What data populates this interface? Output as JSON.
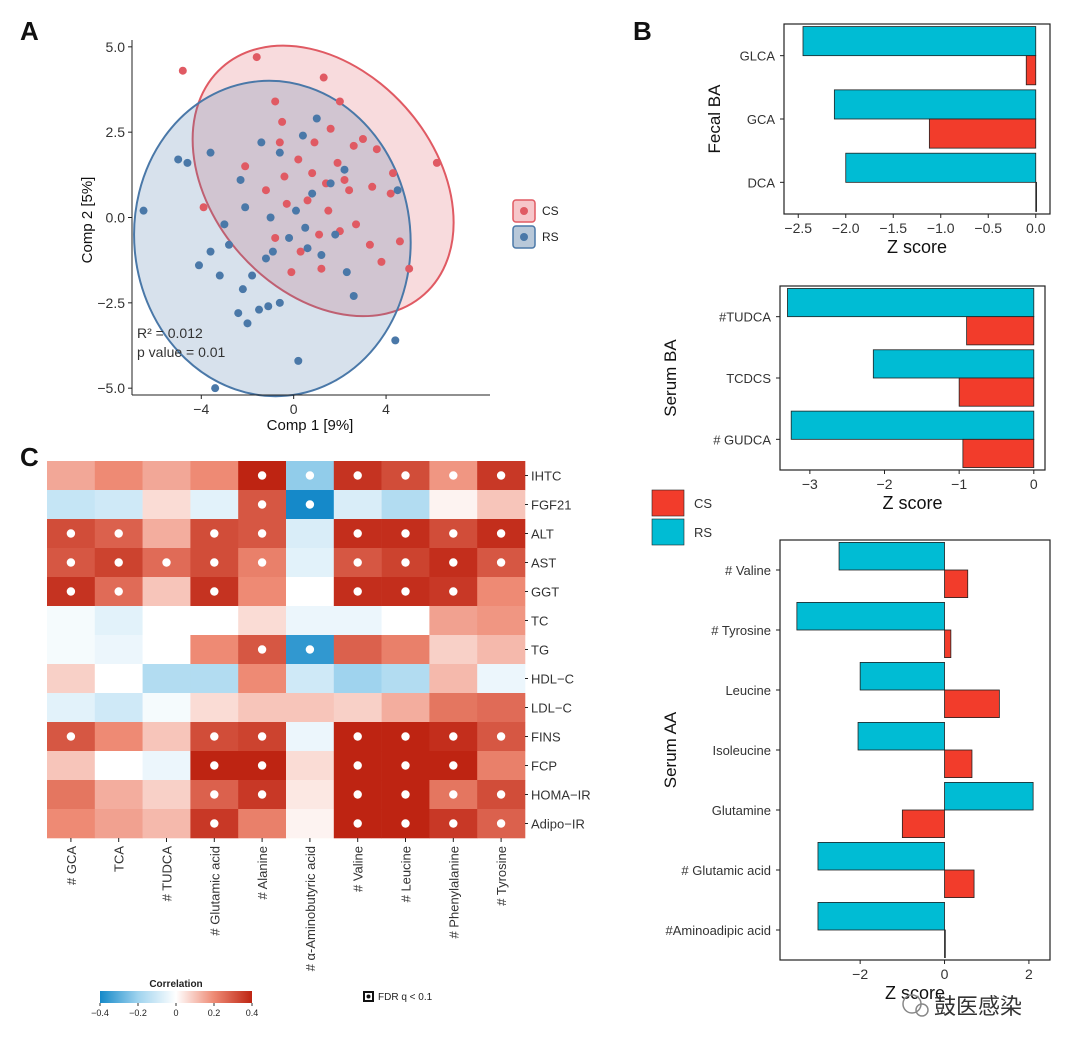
{
  "panels": {
    "a": "A",
    "b": "B",
    "c": "C"
  },
  "watermark": "鼓医感染",
  "colors": {
    "cs": "#e05a63",
    "rs": "#4a78a8",
    "bar_cs": "#f23c2b",
    "bar_rs": "#00bcd4"
  },
  "chart_data": [
    {
      "id": "A",
      "type": "scatter",
      "xlabel": "Comp 1 [9%]",
      "ylabel": "Comp 2 [5%]",
      "xlim": [
        -7,
        8.5
      ],
      "ylim": [
        -5.2,
        5.2
      ],
      "xticks": [
        "−4",
        "0",
        "4"
      ],
      "xtick_values": [
        -4,
        0,
        4
      ],
      "yticks": [
        "5.0",
        "2.5",
        "0.0",
        "−2.5",
        "−5.0"
      ],
      "ytick_values": [
        5,
        2.5,
        0,
        -2.5,
        -5
      ],
      "legend": [
        "CS",
        "RS"
      ],
      "annotation": [
        "R² =  0.012",
        "p value =  0.01"
      ],
      "series": [
        {
          "name": "CS",
          "points": [
            [
              -4.8,
              4.3
            ],
            [
              -1.6,
              4.7
            ],
            [
              -0.8,
              3.4
            ],
            [
              -0.6,
              2.2
            ],
            [
              1.3,
              4.1
            ],
            [
              2.0,
              3.4
            ],
            [
              3.0,
              2.3
            ],
            [
              3.6,
              2.0
            ],
            [
              4.3,
              1.3
            ],
            [
              6.2,
              1.6
            ],
            [
              0.2,
              1.7
            ],
            [
              1.4,
              1.0
            ],
            [
              -0.4,
              1.2
            ],
            [
              -3.9,
              0.3
            ],
            [
              0.6,
              0.5
            ],
            [
              2.4,
              0.8
            ],
            [
              3.4,
              0.9
            ],
            [
              4.2,
              0.7
            ],
            [
              -1.2,
              0.8
            ],
            [
              -0.3,
              0.4
            ],
            [
              0.8,
              1.3
            ],
            [
              1.9,
              1.6
            ],
            [
              2.6,
              2.1
            ],
            [
              4.6,
              -0.7
            ],
            [
              5.0,
              -1.5
            ],
            [
              -0.8,
              -0.6
            ],
            [
              1.1,
              -0.5
            ],
            [
              2.0,
              -0.4
            ],
            [
              3.3,
              -0.8
            ],
            [
              3.8,
              -1.3
            ],
            [
              -0.1,
              -1.6
            ],
            [
              1.2,
              -1.5
            ],
            [
              1.5,
              0.2
            ],
            [
              2.7,
              -0.2
            ],
            [
              0.3,
              -1.0
            ],
            [
              -0.5,
              2.8
            ],
            [
              1.6,
              2.6
            ],
            [
              -2.1,
              1.5
            ],
            [
              0.9,
              2.2
            ],
            [
              2.2,
              1.1
            ]
          ]
        },
        {
          "name": "RS",
          "points": [
            [
              -6.5,
              0.2
            ],
            [
              -5.0,
              1.7
            ],
            [
              -4.6,
              1.6
            ],
            [
              -3.6,
              1.9
            ],
            [
              -3.4,
              -5.0
            ],
            [
              0.2,
              -4.2
            ],
            [
              4.4,
              -3.6
            ],
            [
              -4.1,
              -1.4
            ],
            [
              -3.2,
              -1.7
            ],
            [
              -2.4,
              -2.8
            ],
            [
              -2.0,
              -3.1
            ],
            [
              -1.5,
              -2.7
            ],
            [
              -1.1,
              -2.6
            ],
            [
              -0.6,
              -2.5
            ],
            [
              -2.2,
              -2.1
            ],
            [
              -1.8,
              -1.7
            ],
            [
              -1.2,
              -1.2
            ],
            [
              -0.2,
              -0.6
            ],
            [
              0.6,
              -0.9
            ],
            [
              1.2,
              -1.1
            ],
            [
              2.3,
              -1.6
            ],
            [
              2.6,
              -2.3
            ],
            [
              -2.8,
              -0.8
            ],
            [
              -3.0,
              -0.2
            ],
            [
              -2.1,
              0.3
            ],
            [
              -1.0,
              0.0
            ],
            [
              0.1,
              0.2
            ],
            [
              0.8,
              0.7
            ],
            [
              1.6,
              1.0
            ],
            [
              2.2,
              1.4
            ],
            [
              4.5,
              0.8
            ],
            [
              -1.4,
              2.2
            ],
            [
              -0.6,
              1.9
            ],
            [
              0.4,
              2.4
            ],
            [
              1.0,
              2.9
            ],
            [
              -2.3,
              1.1
            ],
            [
              0.5,
              -0.3
            ],
            [
              -3.6,
              -1.0
            ],
            [
              -0.9,
              -1.0
            ],
            [
              1.8,
              -0.5
            ]
          ]
        }
      ]
    },
    {
      "id": "B-fecal",
      "type": "bar",
      "orientation": "horizontal",
      "ylabel": "Fecal BA",
      "xlabel": "Z score",
      "xlim": [
        -2.65,
        0.15
      ],
      "xticks": [
        "−2.5",
        "−2.0",
        "−1.5",
        "−1.0",
        "−0.5",
        "0.0"
      ],
      "xtick_values": [
        -2.5,
        -2.0,
        -1.5,
        -1.0,
        -0.5,
        0.0
      ],
      "categories": [
        "GLCA",
        "GCA",
        "DCA"
      ],
      "series": [
        {
          "name": "RS",
          "values": [
            -2.45,
            -2.12,
            -2.0
          ]
        },
        {
          "name": "CS",
          "values": [
            -0.1,
            -1.12,
            0.0
          ]
        }
      ]
    },
    {
      "id": "B-serum-ba",
      "type": "bar",
      "orientation": "horizontal",
      "ylabel": "Serum BA",
      "xlabel": "Z score",
      "xlim": [
        -3.4,
        0.15
      ],
      "xticks": [
        "−3",
        "−2",
        "−1",
        "0"
      ],
      "xtick_values": [
        -3,
        -2,
        -1,
        0
      ],
      "categories": [
        "#TUDCA",
        "TCDCS",
        "# GUDCA"
      ],
      "series": [
        {
          "name": "RS",
          "values": [
            -3.3,
            -2.15,
            -3.25
          ]
        },
        {
          "name": "CS",
          "values": [
            -0.9,
            -1.0,
            -0.95
          ]
        }
      ],
      "legend": [
        "CS",
        "RS"
      ]
    },
    {
      "id": "B-serum-aa",
      "type": "bar",
      "orientation": "horizontal",
      "ylabel": "Serum AA",
      "xlabel": "Z score",
      "xlim": [
        -3.9,
        2.5
      ],
      "xticks": [
        "−2",
        "0",
        "2"
      ],
      "xtick_values": [
        -2,
        0,
        2
      ],
      "categories": [
        "# Valine",
        "# Tyrosine",
        "Leucine",
        "Isoleucine",
        "Glutamine",
        "# Glutamic acid",
        "#Aminoadipic acid"
      ],
      "series": [
        {
          "name": "RS",
          "values": [
            -2.5,
            -3.5,
            -2.0,
            -2.05,
            2.1,
            -3.0,
            -3.0
          ]
        },
        {
          "name": "CS",
          "values": [
            0.55,
            0.15,
            1.3,
            0.65,
            -1.0,
            0.7,
            0.0
          ]
        }
      ]
    },
    {
      "id": "C",
      "type": "heatmap",
      "columns": [
        "# GCA",
        "TCA",
        "# TUDCA",
        "# Glutamic acid",
        "# Alanine",
        "# α-Aminobutyric acid",
        "# Valine",
        "# Leucine",
        "# Phenylalanine",
        "# Tyrosine"
      ],
      "rows": [
        "IHTC",
        "FGF21",
        "ALT",
        "AST",
        "GGT",
        "TC",
        "TG",
        "HDL−C",
        "LDL−C",
        "FINS",
        "FCP",
        "HOMA−IR",
        "Adipo−IR"
      ],
      "values": [
        [
          0.15,
          0.2,
          0.15,
          0.2,
          0.4,
          -0.22,
          0.37,
          0.32,
          0.18,
          0.36
        ],
        [
          -0.12,
          -0.1,
          0.06,
          -0.06,
          0.3,
          -0.4,
          -0.08,
          -0.16,
          0.02,
          0.1
        ],
        [
          0.32,
          0.28,
          0.14,
          0.32,
          0.3,
          -0.08,
          0.38,
          0.38,
          0.32,
          0.38
        ],
        [
          0.3,
          0.34,
          0.26,
          0.32,
          0.22,
          -0.06,
          0.3,
          0.34,
          0.38,
          0.3
        ],
        [
          0.37,
          0.26,
          0.1,
          0.37,
          0.2,
          0.0,
          0.38,
          0.38,
          0.36,
          0.2
        ],
        [
          -0.02,
          -0.06,
          0.0,
          0.0,
          0.06,
          -0.04,
          -0.04,
          0.0,
          0.16,
          0.18
        ],
        [
          -0.02,
          -0.04,
          0.0,
          0.2,
          0.3,
          -0.36,
          0.28,
          0.22,
          0.08,
          0.12
        ],
        [
          0.08,
          0.0,
          -0.16,
          -0.16,
          0.2,
          -0.1,
          -0.2,
          -0.16,
          0.12,
          -0.04
        ],
        [
          -0.06,
          -0.1,
          -0.02,
          0.06,
          0.1,
          0.1,
          0.08,
          0.14,
          0.24,
          0.26
        ],
        [
          0.3,
          0.2,
          0.1,
          0.32,
          0.34,
          -0.04,
          0.4,
          0.4,
          0.38,
          0.3
        ],
        [
          0.1,
          0.0,
          -0.04,
          0.42,
          0.4,
          0.06,
          0.4,
          0.4,
          0.4,
          0.22
        ],
        [
          0.24,
          0.14,
          0.08,
          0.28,
          0.36,
          0.04,
          0.4,
          0.4,
          0.24,
          0.32
        ],
        [
          0.2,
          0.16,
          0.12,
          0.36,
          0.22,
          0.02,
          0.4,
          0.4,
          0.36,
          0.28
        ]
      ],
      "significant": [
        [
          0,
          0,
          0,
          0,
          1,
          1,
          1,
          1,
          1,
          1
        ],
        [
          0,
          0,
          0,
          0,
          1,
          1,
          0,
          0,
          0,
          0
        ],
        [
          1,
          1,
          0,
          1,
          1,
          0,
          1,
          1,
          1,
          1
        ],
        [
          1,
          1,
          1,
          1,
          1,
          0,
          1,
          1,
          1,
          1
        ],
        [
          1,
          1,
          0,
          1,
          0,
          0,
          1,
          1,
          1,
          0
        ],
        [
          0,
          0,
          0,
          0,
          0,
          0,
          0,
          0,
          0,
          0
        ],
        [
          0,
          0,
          0,
          0,
          1,
          1,
          0,
          0,
          0,
          0
        ],
        [
          0,
          0,
          0,
          0,
          0,
          0,
          0,
          0,
          0,
          0
        ],
        [
          0,
          0,
          0,
          0,
          0,
          0,
          0,
          0,
          0,
          0
        ],
        [
          1,
          0,
          0,
          1,
          1,
          0,
          1,
          1,
          1,
          1
        ],
        [
          0,
          0,
          0,
          1,
          1,
          0,
          1,
          1,
          1,
          0
        ],
        [
          0,
          0,
          0,
          1,
          1,
          0,
          1,
          1,
          1,
          1
        ],
        [
          0,
          0,
          0,
          1,
          0,
          0,
          1,
          1,
          1,
          1
        ]
      ],
      "legend_title": "Correlation",
      "legend_ticks": [
        "−0.4",
        "−0.2",
        "0",
        "0.2",
        "0.4"
      ],
      "legend_tick_values": [
        -0.4,
        -0.2,
        0,
        0.2,
        0.4
      ],
      "legend_range": [
        -0.4,
        0.4
      ],
      "fdr_label": "FDR q < 0.1"
    }
  ]
}
